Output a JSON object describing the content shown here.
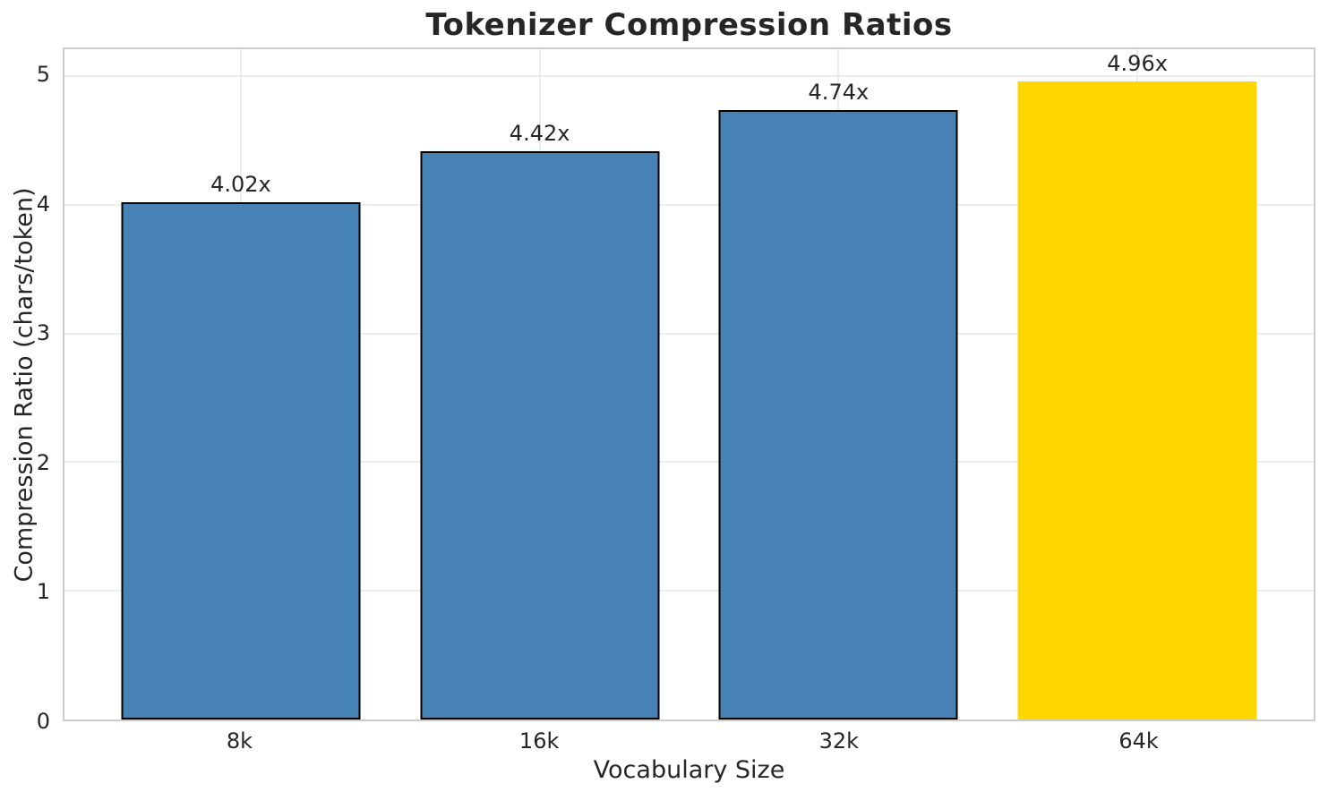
{
  "chart_data": {
    "type": "bar",
    "title": "Tokenizer Compression Ratios",
    "xlabel": "Vocabulary Size",
    "ylabel": "Compression Ratio (chars/token)",
    "categories": [
      "8k",
      "16k",
      "32k",
      "64k"
    ],
    "values": [
      4.02,
      4.42,
      4.74,
      4.96
    ],
    "value_labels": [
      "4.02x",
      "4.42x",
      "4.74x",
      "4.96x"
    ],
    "bar_colors": [
      "#4682b4",
      "#4682b4",
      "#4682b4",
      "#ffd700"
    ],
    "bar_edge_colors": [
      "#000000",
      "#000000",
      "#000000",
      null
    ],
    "yticks": [
      0,
      1,
      2,
      3,
      4,
      5
    ],
    "ylim": [
      0,
      5.21
    ],
    "bar_width_fraction": 0.8,
    "grid": true,
    "legend_position": "none"
  },
  "colors": {
    "background": "#ffffff",
    "text": "#262626",
    "spine": "#cccccc",
    "grid": "#ededed",
    "bar_default": "#4682b4",
    "bar_highlight": "#ffd700"
  }
}
